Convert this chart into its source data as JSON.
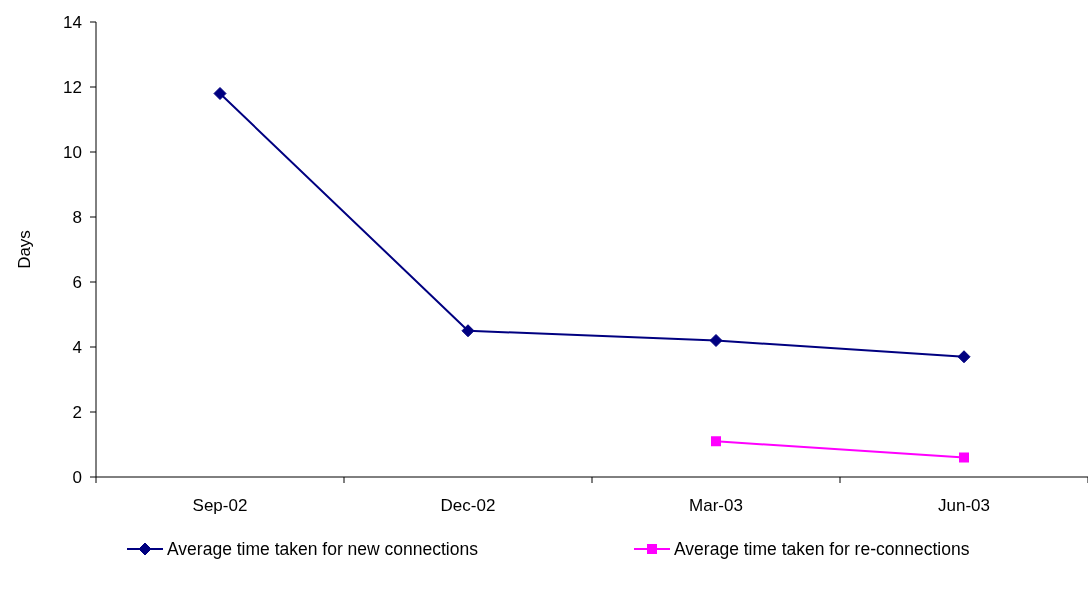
{
  "chart_data": {
    "type": "line",
    "ylabel": "Days",
    "categories": [
      "Sep-02",
      "Dec-02",
      "Mar-03",
      "Jun-03"
    ],
    "series": [
      {
        "name": "Average time taken for new connections",
        "color": "#000080",
        "values": [
          11.8,
          4.5,
          4.2,
          3.7
        ],
        "marker": "diamond"
      },
      {
        "name": "Average time taken for re-connections",
        "color": "#ff00ff",
        "values": [
          null,
          null,
          1.1,
          0.6
        ],
        "marker": "square"
      }
    ],
    "ylim": [
      0,
      14
    ],
    "yticks": [
      0,
      2,
      4,
      6,
      8,
      10,
      12,
      14
    ],
    "grid": false,
    "legend": "bottom"
  }
}
